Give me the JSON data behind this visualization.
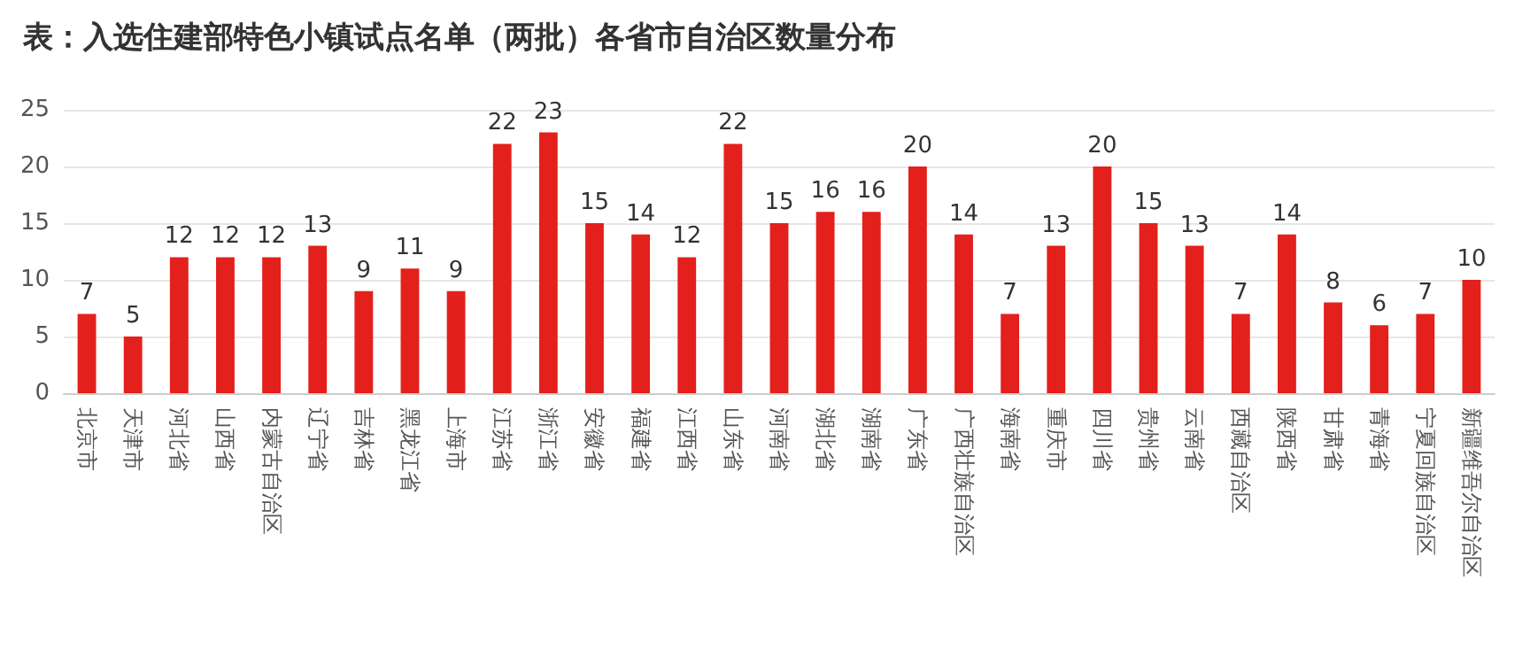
{
  "chart_data": {
    "type": "bar",
    "title": "表：入选住建部特色小镇试点名单（两批）各省市自治区数量分布",
    "categories": [
      "北京市",
      "天津市",
      "河北省",
      "山西省",
      "内蒙古自治区",
      "辽宁省",
      "吉林省",
      "黑龙江省",
      "上海市",
      "江苏省",
      "浙江省",
      "安徽省",
      "福建省",
      "江西省",
      "山东省",
      "河南省",
      "湖北省",
      "湖南省",
      "广东省",
      "广西壮族自治区",
      "海南省",
      "重庆市",
      "四川省",
      "贵州省",
      "云南省",
      "西藏自治区",
      "陕西省",
      "甘肃省",
      "青海省",
      "宁夏回族自治区",
      "新疆维吾尔自治区"
    ],
    "values": [
      7,
      5,
      12,
      12,
      12,
      13,
      9,
      11,
      9,
      22,
      23,
      15,
      14,
      12,
      22,
      15,
      16,
      16,
      20,
      14,
      7,
      13,
      20,
      15,
      13,
      7,
      14,
      8,
      6,
      7,
      10
    ],
    "color": "#e3201b",
    "ylim": [
      0,
      25
    ],
    "yticks": [
      0,
      5,
      10,
      15,
      20,
      25
    ],
    "grid": "y",
    "data_labels": true
  }
}
